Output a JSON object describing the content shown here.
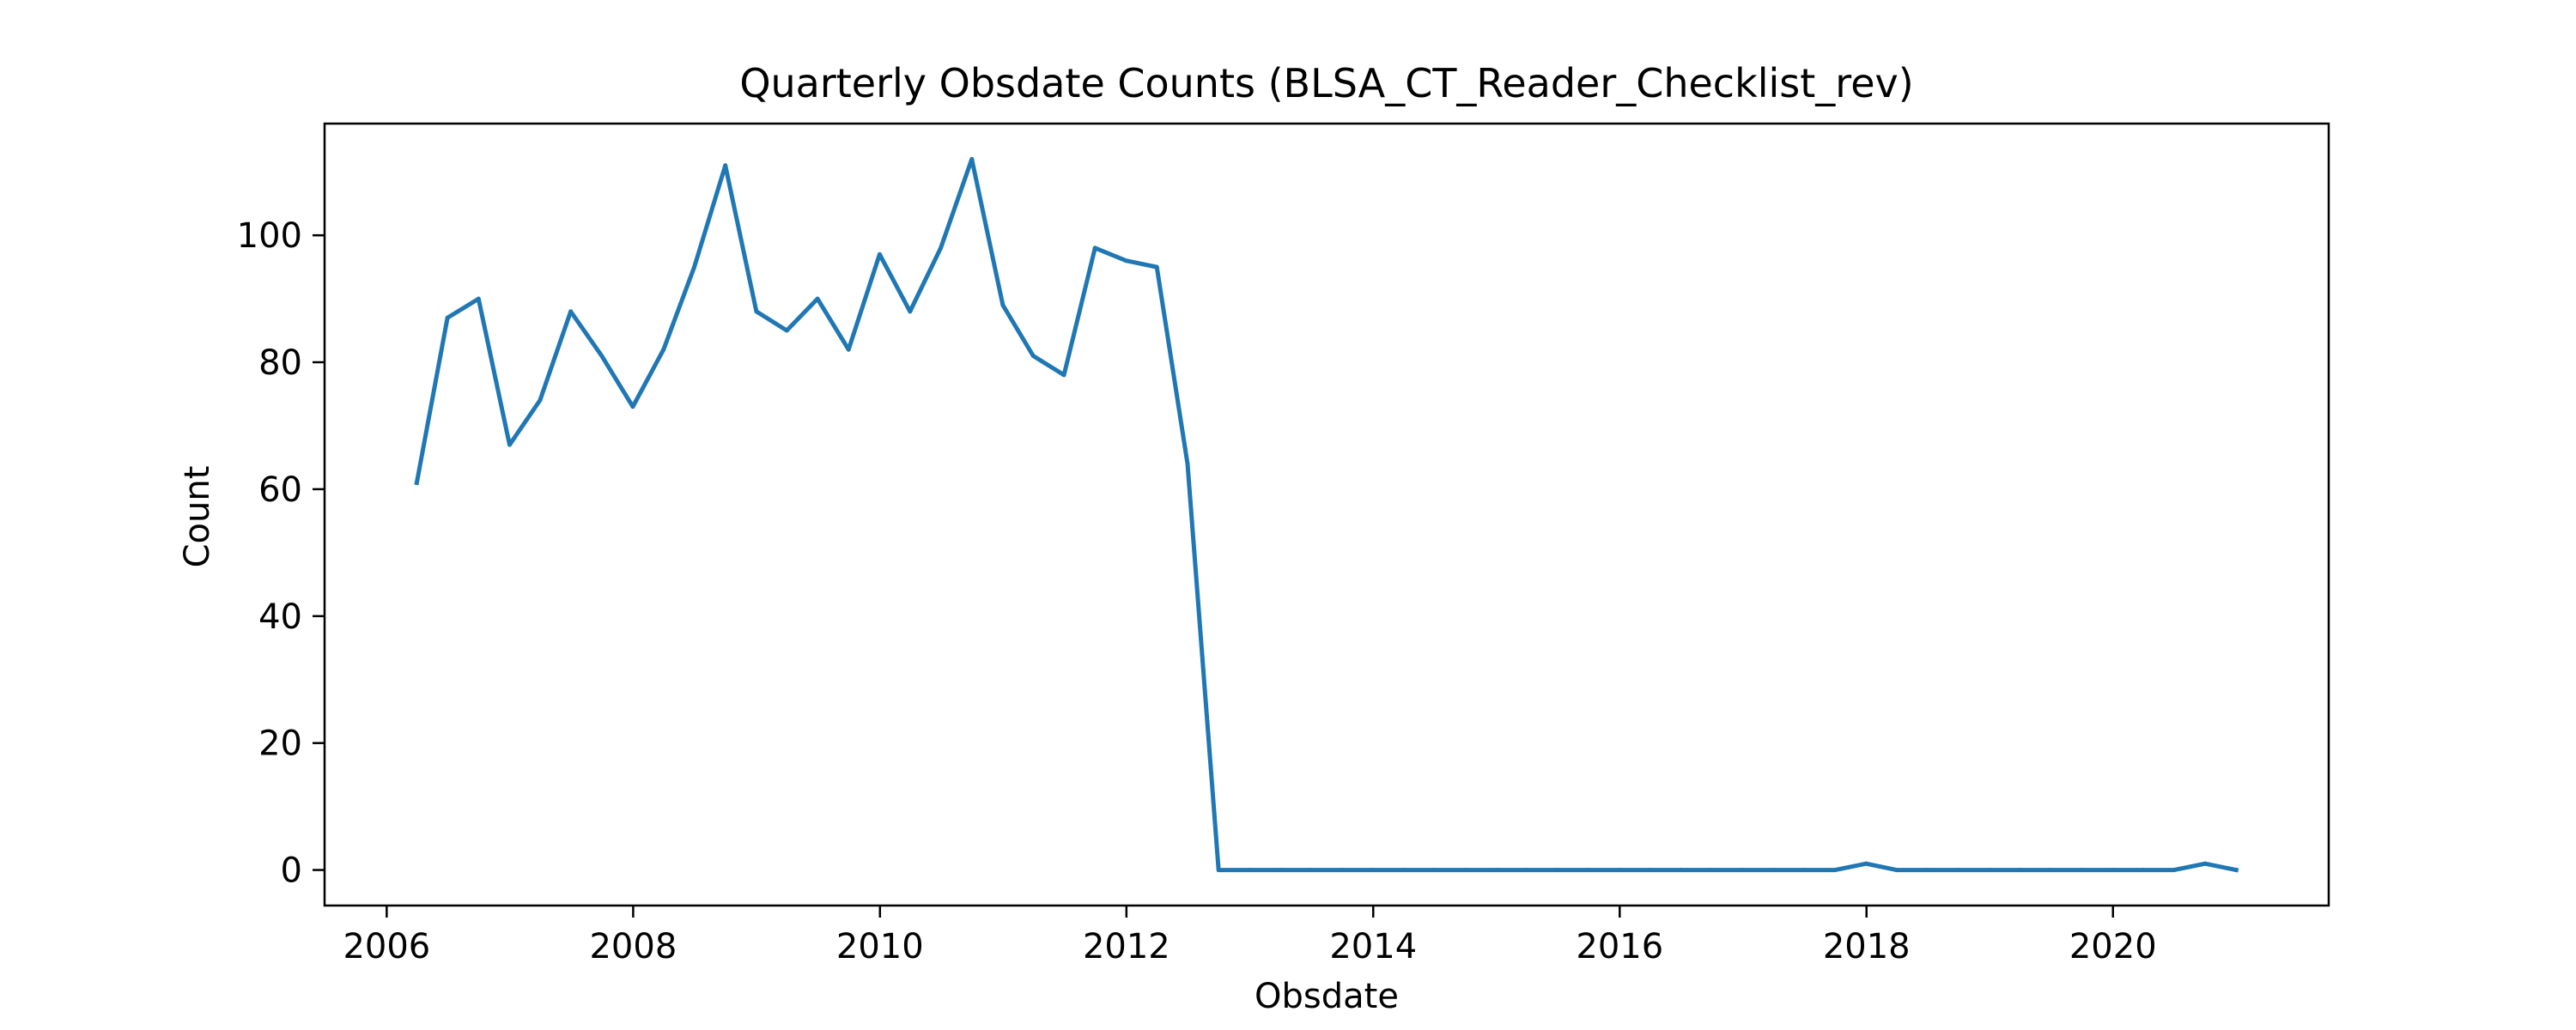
{
  "chart_data": {
    "type": "line",
    "title": "Quarterly Obsdate Counts (BLSA_CT_Reader_Checklist_rev)",
    "xlabel": "Obsdate",
    "ylabel": "Count",
    "x_type": "date",
    "xlim": [
      "2005-07-01",
      "2021-10-01"
    ],
    "ylim": [
      -5.6,
      117.6
    ],
    "x_ticks": [
      {
        "value": "2006-01-01",
        "label": "2006"
      },
      {
        "value": "2008-01-01",
        "label": "2008"
      },
      {
        "value": "2010-01-01",
        "label": "2010"
      },
      {
        "value": "2012-01-01",
        "label": "2012"
      },
      {
        "value": "2014-01-01",
        "label": "2014"
      },
      {
        "value": "2016-01-01",
        "label": "2016"
      },
      {
        "value": "2018-01-01",
        "label": "2018"
      },
      {
        "value": "2020-01-01",
        "label": "2020"
      }
    ],
    "y_ticks": [
      0,
      20,
      40,
      60,
      80,
      100
    ],
    "grid": false,
    "legend": "none",
    "series": [
      {
        "color": "#1f77b4",
        "x": [
          "2006-03-31",
          "2006-06-30",
          "2006-09-30",
          "2006-12-31",
          "2007-03-31",
          "2007-06-30",
          "2007-09-30",
          "2007-12-31",
          "2008-03-31",
          "2008-06-30",
          "2008-09-30",
          "2008-12-31",
          "2009-03-31",
          "2009-06-30",
          "2009-09-30",
          "2009-12-31",
          "2010-03-31",
          "2010-06-30",
          "2010-09-30",
          "2010-12-31",
          "2011-03-31",
          "2011-06-30",
          "2011-09-30",
          "2011-12-31",
          "2012-03-31",
          "2012-06-30",
          "2012-09-30",
          "2012-12-31",
          "2013-03-31",
          "2013-06-30",
          "2013-09-30",
          "2013-12-31",
          "2014-03-31",
          "2014-06-30",
          "2014-09-30",
          "2014-12-31",
          "2015-03-31",
          "2015-06-30",
          "2015-09-30",
          "2015-12-31",
          "2016-03-31",
          "2016-06-30",
          "2016-09-30",
          "2016-12-31",
          "2017-03-31",
          "2017-06-30",
          "2017-09-30",
          "2017-12-31",
          "2018-03-31",
          "2018-06-30",
          "2018-09-30",
          "2018-12-31",
          "2019-03-31",
          "2019-06-30",
          "2019-09-30",
          "2019-12-31",
          "2020-03-31",
          "2020-06-30",
          "2020-09-30",
          "2020-12-31"
        ],
        "values": [
          61,
          87,
          90,
          67,
          74,
          88,
          81,
          73,
          82,
          95,
          111,
          88,
          85,
          90,
          82,
          97,
          88,
          98,
          112,
          89,
          81,
          78,
          98,
          96,
          95,
          64,
          0,
          0,
          0,
          0,
          0,
          0,
          0,
          0,
          0,
          0,
          0,
          0,
          0,
          0,
          0,
          0,
          0,
          0,
          0,
          0,
          0,
          1,
          0,
          0,
          0,
          0,
          0,
          0,
          0,
          0,
          0,
          0,
          1,
          0
        ]
      }
    ]
  }
}
